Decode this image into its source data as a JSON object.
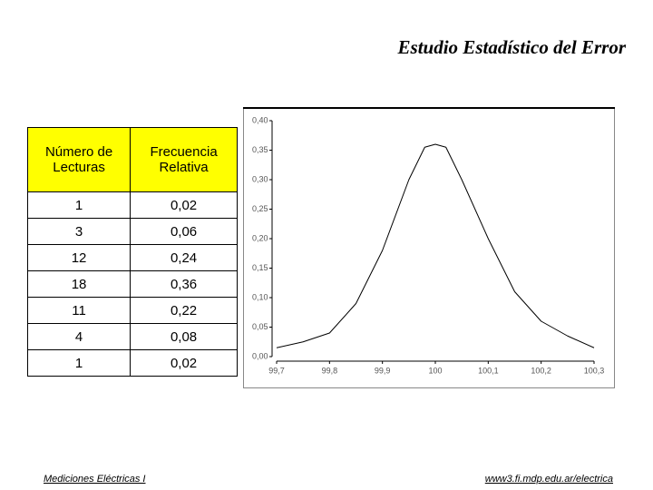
{
  "slide": {
    "title": "Estudio Estadístico del Error",
    "footer_left": "Mediciones Eléctricas I",
    "footer_right": "www3.fi.mdp.edu.ar/electrica"
  },
  "table": {
    "header": [
      "Número de Lecturas",
      "Frecuencia Relativa"
    ],
    "rows": [
      [
        "1",
        "0,02"
      ],
      [
        "3",
        "0,06"
      ],
      [
        "12",
        "0,24"
      ],
      [
        "18",
        "0,36"
      ],
      [
        "11",
        "0,22"
      ],
      [
        "4",
        "0,08"
      ],
      [
        "1",
        "0,02"
      ]
    ]
  },
  "chart_data": {
    "type": "line",
    "x": [
      99.7,
      99.75,
      99.8,
      99.85,
      99.9,
      99.95,
      99.98,
      100,
      100.02,
      100.05,
      100.1,
      100.15,
      100.2,
      100.25,
      100.3
    ],
    "series": [
      {
        "color": "#000000",
        "values": [
          0.015,
          0.025,
          0.04,
          0.09,
          0.18,
          0.3,
          0.355,
          0.36,
          0.355,
          0.3,
          0.2,
          0.11,
          0.06,
          0.035,
          0.015
        ]
      }
    ],
    "xlim": [
      99.7,
      100.3
    ],
    "xticks": [
      {
        "value": 99.7,
        "label": "99,7"
      },
      {
        "value": 99.8,
        "label": "99,8"
      },
      {
        "value": 99.9,
        "label": "99,9"
      },
      100,
      {
        "value": 100.1,
        "label": "100,1"
      },
      {
        "value": 100.2,
        "label": "100,2"
      },
      {
        "value": 100.3,
        "label": "100,3"
      }
    ],
    "ylim": [
      0,
      0.4
    ],
    "yticks": [
      {
        "value": 0,
        "label": "0,00"
      },
      {
        "value": 0.05,
        "label": "0,05"
      },
      {
        "value": 0.1,
        "label": "0,10"
      },
      {
        "value": 0.15,
        "label": "0,15"
      },
      {
        "value": 0.2,
        "label": "0,20"
      },
      {
        "value": 0.25,
        "label": "0,25"
      },
      {
        "value": 0.3,
        "label": "0,30"
      },
      {
        "value": 0.35,
        "label": "0,35"
      },
      {
        "value": 0.4,
        "label": "0,40"
      }
    ],
    "grid": false
  }
}
